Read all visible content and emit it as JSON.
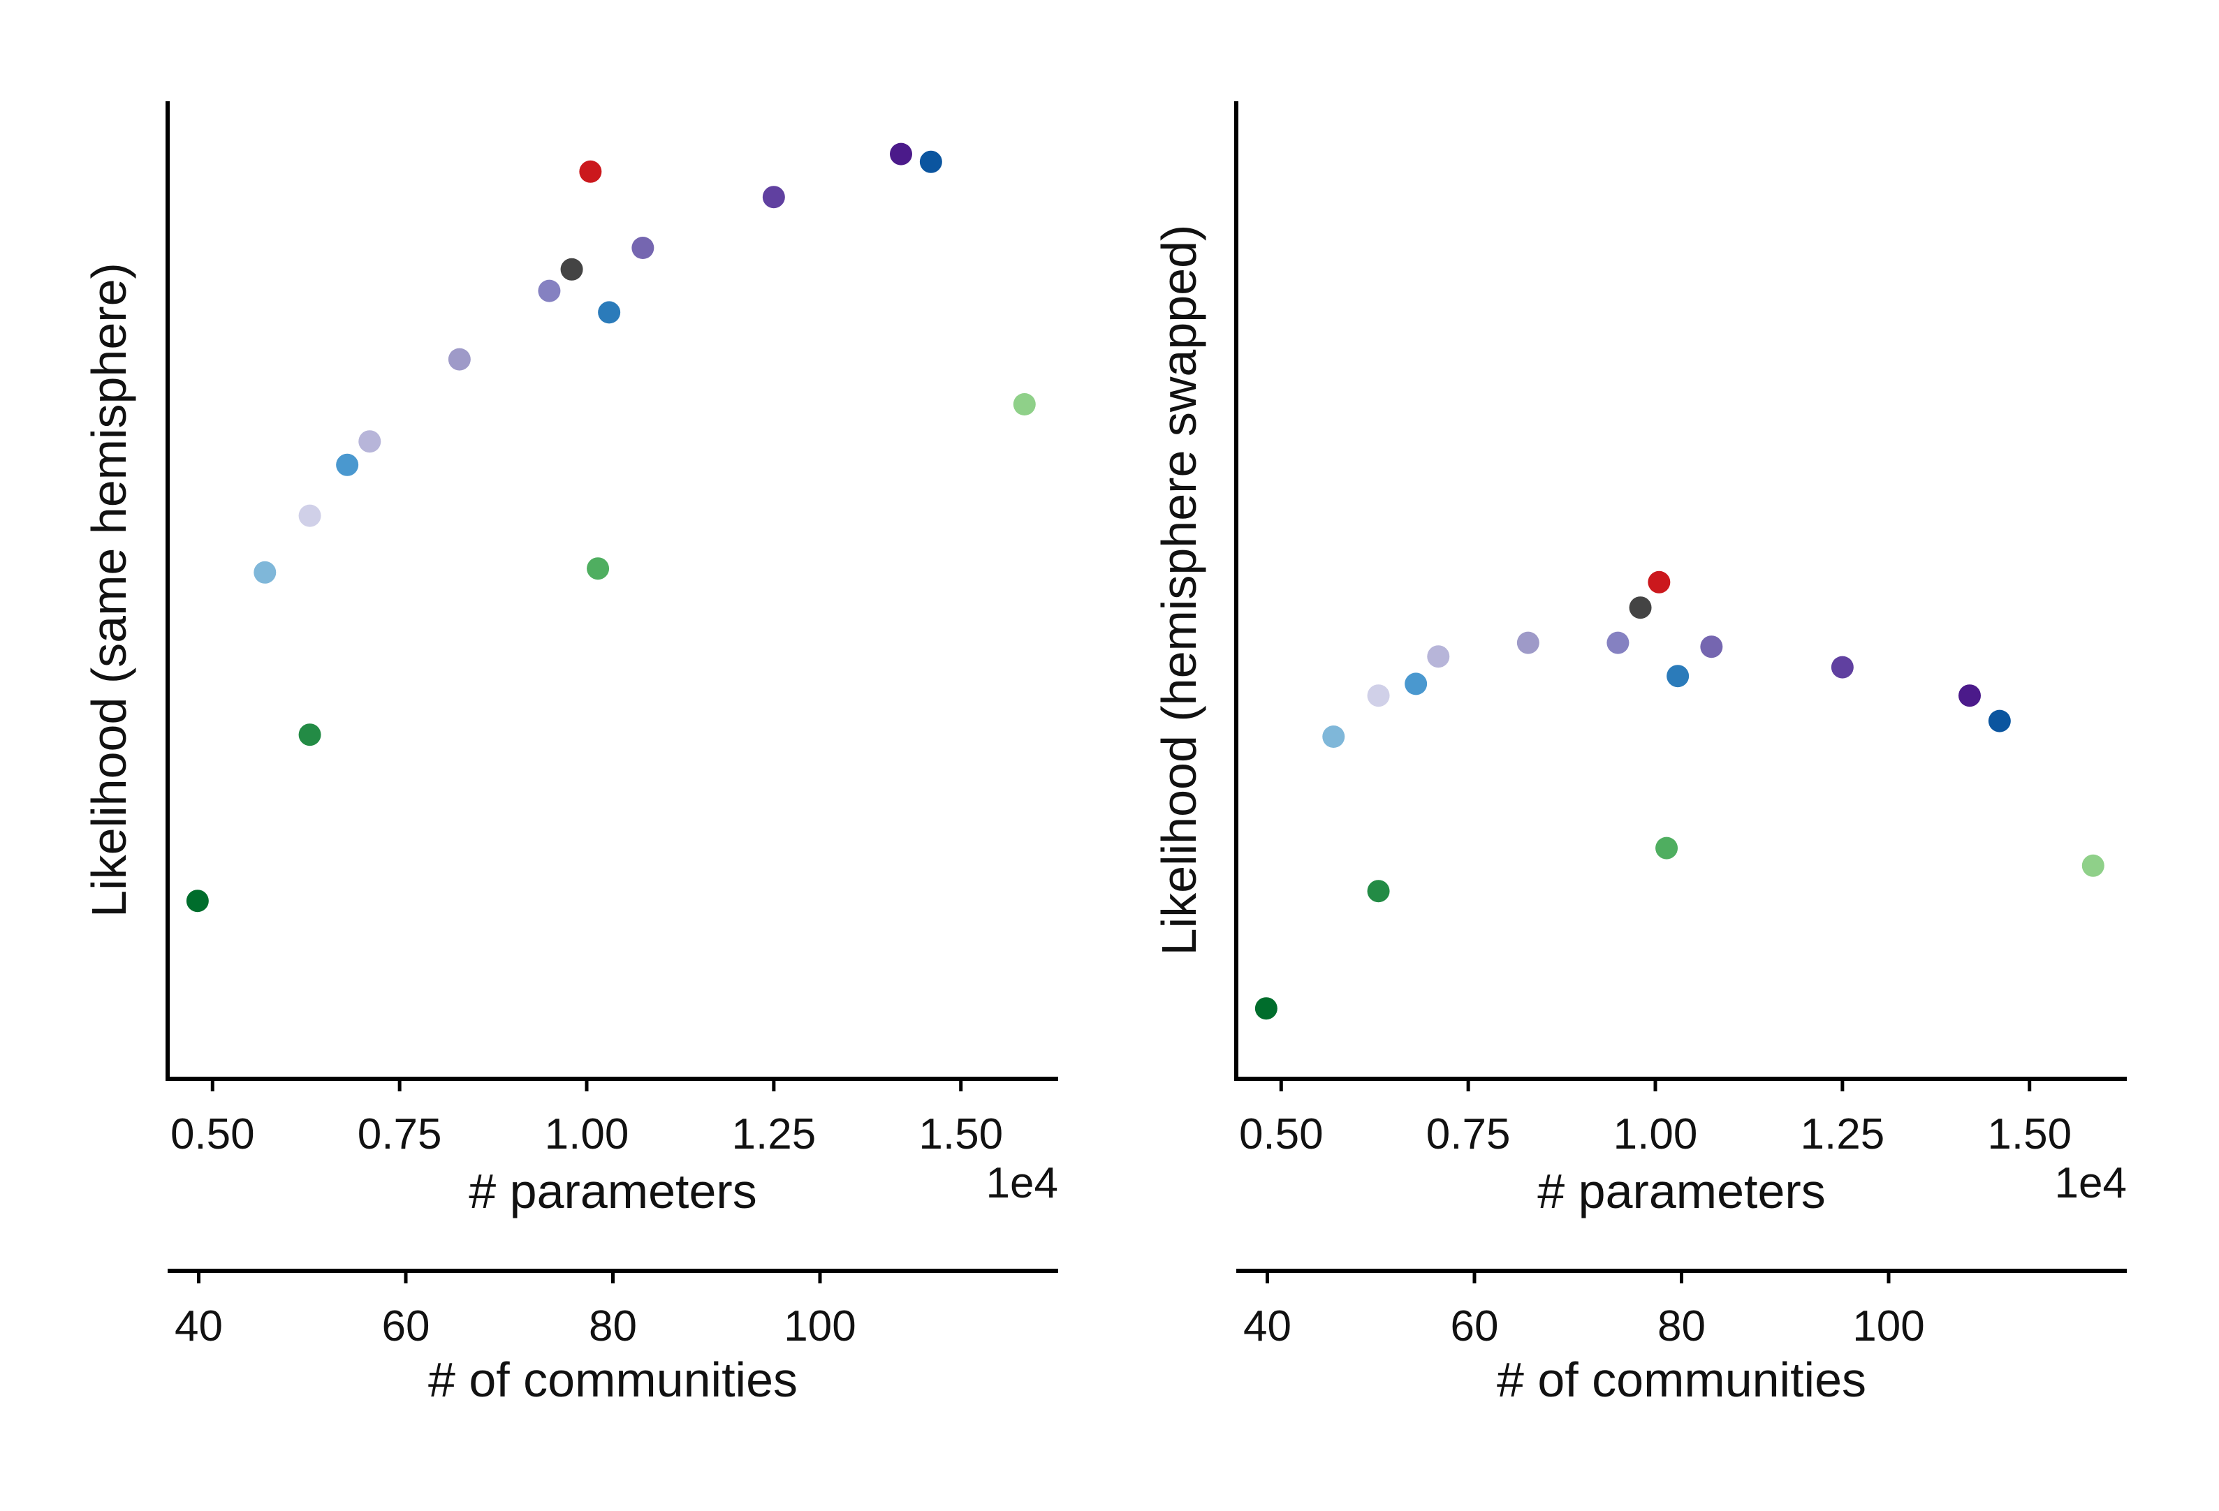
{
  "chart_data": [
    {
      "type": "scatter",
      "title": "",
      "xlabel": "# parameters",
      "ylabel": "Likelihood (same hemisphere)",
      "x_offset_label": "1e4",
      "xlim": [
        0.44,
        1.63
      ],
      "ylim": [
        0.0,
        1.0
      ],
      "x_ticks": [
        0.5,
        0.75,
        1.0,
        1.25,
        1.5
      ],
      "x_tick_labels": [
        "0.50",
        "0.75",
        "1.00",
        "1.25",
        "1.50"
      ],
      "y_ticks_labeled": false,
      "grid": false,
      "secondary_x_axis": {
        "label": "# of communities",
        "lim": [
          37,
          123
        ],
        "ticks": [
          40,
          60,
          80,
          100
        ],
        "tick_labels": [
          "40",
          "60",
          "80",
          "100"
        ]
      },
      "points": [
        {
          "x": 0.48,
          "y": 0.182,
          "color": "#006d2c"
        },
        {
          "x": 0.57,
          "y": 0.518,
          "color": "#7fb7d9"
        },
        {
          "x": 0.63,
          "y": 0.352,
          "color": "#238b45"
        },
        {
          "x": 0.63,
          "y": 0.576,
          "color": "#d0d0e8"
        },
        {
          "x": 0.68,
          "y": 0.628,
          "color": "#4a98cf"
        },
        {
          "x": 0.71,
          "y": 0.652,
          "color": "#b7b5d9"
        },
        {
          "x": 0.83,
          "y": 0.736,
          "color": "#9e9ac8"
        },
        {
          "x": 0.95,
          "y": 0.806,
          "color": "#8581c1"
        },
        {
          "x": 0.98,
          "y": 0.828,
          "color": "#444444"
        },
        {
          "x": 1.005,
          "y": 0.928,
          "color": "#cb181d"
        },
        {
          "x": 1.015,
          "y": 0.522,
          "color": "#4fae60"
        },
        {
          "x": 1.03,
          "y": 0.784,
          "color": "#2b7bba"
        },
        {
          "x": 1.075,
          "y": 0.85,
          "color": "#7566b0"
        },
        {
          "x": 1.25,
          "y": 0.902,
          "color": "#6040a0"
        },
        {
          "x": 1.42,
          "y": 0.946,
          "color": "#4b1a8a"
        },
        {
          "x": 1.46,
          "y": 0.938,
          "color": "#0b559f"
        },
        {
          "x": 1.585,
          "y": 0.69,
          "color": "#8fd089"
        }
      ]
    },
    {
      "type": "scatter",
      "title": "",
      "xlabel": "# parameters",
      "ylabel": "Likelihood (hemisphere swapped)",
      "x_offset_label": "1e4",
      "xlim": [
        0.44,
        1.63
      ],
      "ylim": [
        0.0,
        1.0
      ],
      "x_ticks": [
        0.5,
        0.75,
        1.0,
        1.25,
        1.5
      ],
      "x_tick_labels": [
        "0.50",
        "0.75",
        "1.00",
        "1.25",
        "1.50"
      ],
      "y_ticks_labeled": false,
      "grid": false,
      "secondary_x_axis": {
        "label": "# of communities",
        "lim": [
          37,
          123
        ],
        "ticks": [
          40,
          60,
          80,
          100
        ],
        "tick_labels": [
          "40",
          "60",
          "80",
          "100"
        ]
      },
      "points": [
        {
          "x": 0.48,
          "y": 0.072,
          "color": "#006d2c"
        },
        {
          "x": 0.57,
          "y": 0.35,
          "color": "#7fb7d9"
        },
        {
          "x": 0.63,
          "y": 0.192,
          "color": "#238b45"
        },
        {
          "x": 0.63,
          "y": 0.392,
          "color": "#d0d0e8"
        },
        {
          "x": 0.68,
          "y": 0.404,
          "color": "#4a98cf"
        },
        {
          "x": 0.71,
          "y": 0.432,
          "color": "#b7b5d9"
        },
        {
          "x": 0.83,
          "y": 0.446,
          "color": "#9e9ac8"
        },
        {
          "x": 0.95,
          "y": 0.446,
          "color": "#8581c1"
        },
        {
          "x": 0.98,
          "y": 0.482,
          "color": "#444444"
        },
        {
          "x": 1.005,
          "y": 0.508,
          "color": "#cb181d"
        },
        {
          "x": 1.015,
          "y": 0.236,
          "color": "#4fae60"
        },
        {
          "x": 1.03,
          "y": 0.412,
          "color": "#2b7bba"
        },
        {
          "x": 1.075,
          "y": 0.442,
          "color": "#7566b0"
        },
        {
          "x": 1.25,
          "y": 0.421,
          "color": "#6040a0"
        },
        {
          "x": 1.42,
          "y": 0.392,
          "color": "#4b1a8a"
        },
        {
          "x": 1.46,
          "y": 0.366,
          "color": "#0b559f"
        },
        {
          "x": 1.585,
          "y": 0.218,
          "color": "#8fd089"
        }
      ]
    }
  ]
}
